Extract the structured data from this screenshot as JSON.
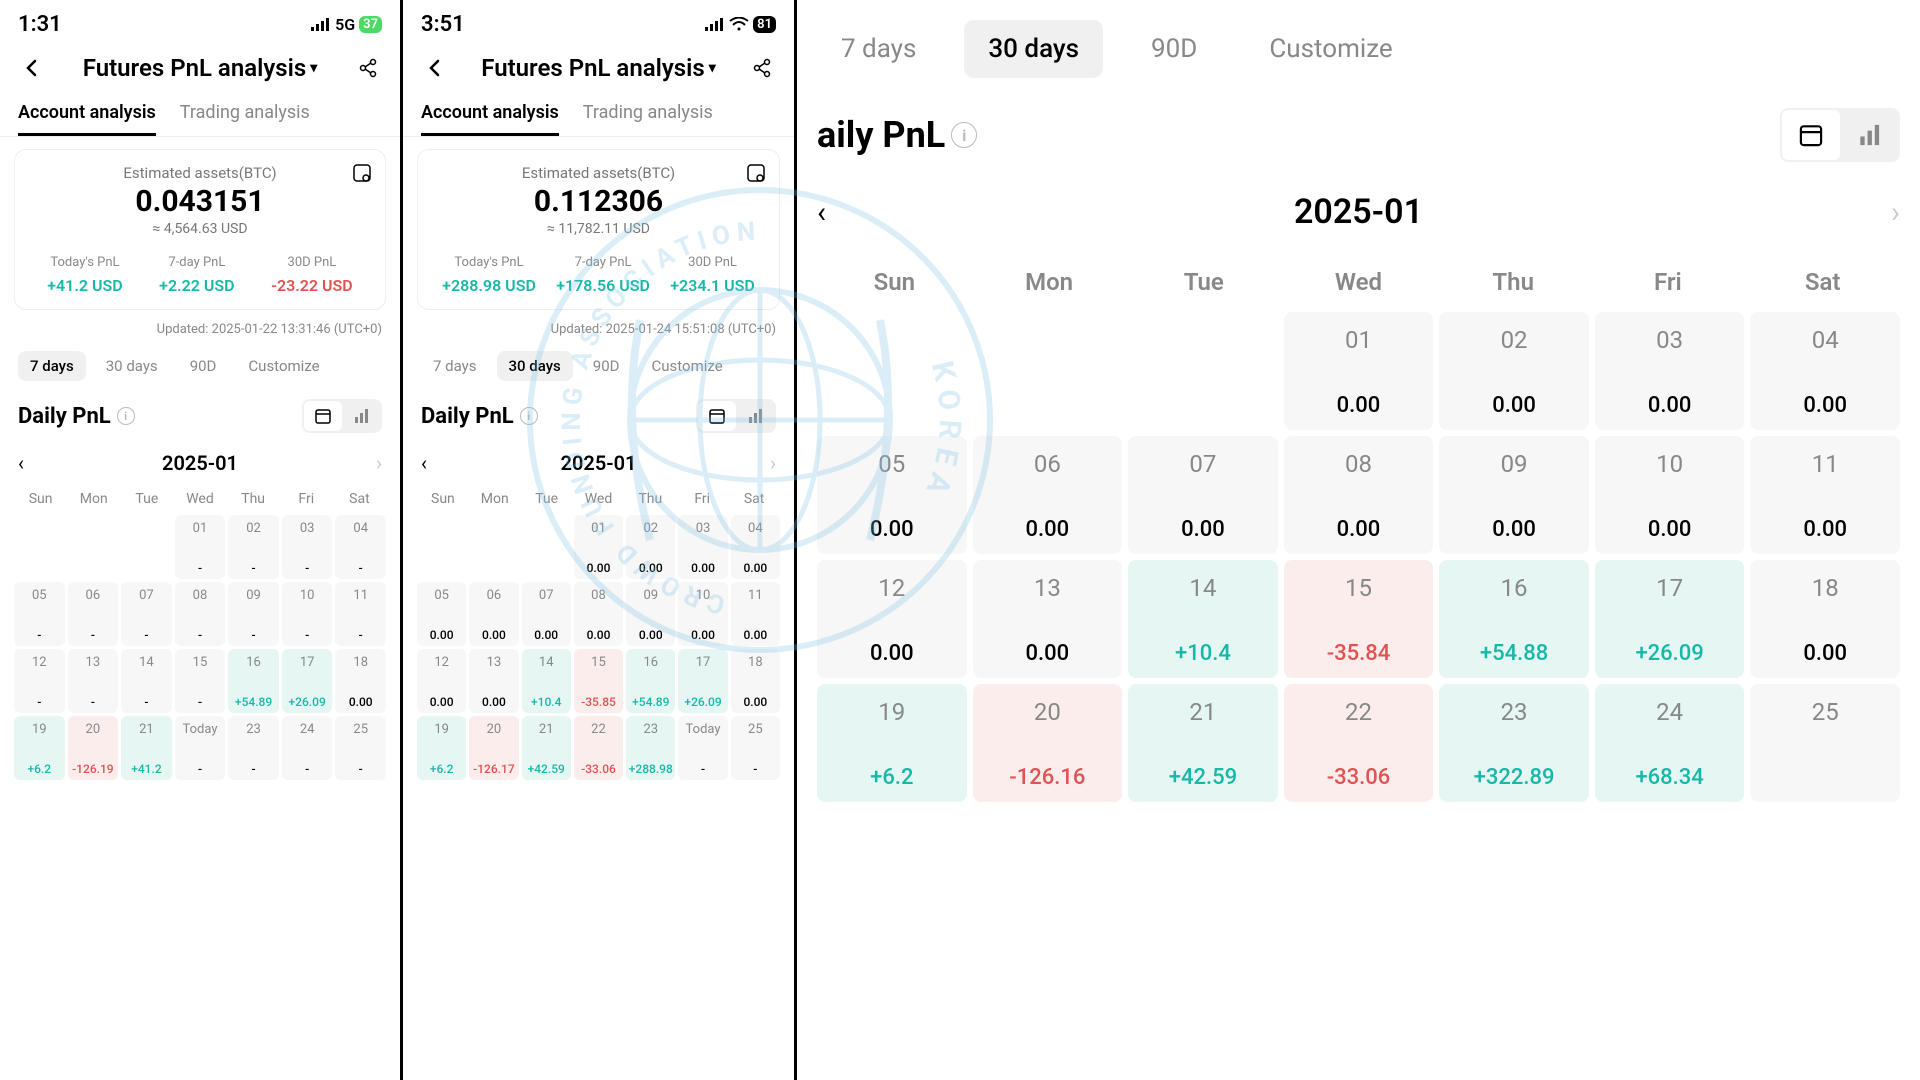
{
  "colors": {
    "pos": "#18b8a8",
    "neg": "#e15252",
    "muted": "#888888",
    "cell_bg": "#f7f7f7",
    "pos_bg": "#e5f6f3",
    "neg_bg": "#fceded",
    "watermark": "#7fc4e8"
  },
  "panel1": {
    "status": {
      "time": "1:31",
      "net": "5G",
      "battery": "37"
    },
    "header": {
      "title": "Futures PnL analysis"
    },
    "tabs": {
      "active": "Account analysis",
      "inactive": "Trading analysis"
    },
    "card": {
      "label": "Estimated assets(BTC)",
      "value": "0.043151",
      "usd": "≈ 4,564.63 USD",
      "pnl": [
        {
          "label": "Today's PnL",
          "value": "+41.2 USD",
          "type": "pos"
        },
        {
          "label": "7-day PnL",
          "value": "+2.22 USD",
          "type": "pos"
        },
        {
          "label": "30D PnL",
          "value": "-23.22 USD",
          "type": "neg"
        }
      ]
    },
    "updated": "Updated: 2025-01-22 13:31:46 (UTC+0)",
    "ranges": [
      "7 days",
      "30 days",
      "90D",
      "Customize"
    ],
    "activeRange": 0,
    "sectionTitle": "Daily PnL",
    "month": "2025-01",
    "dow": [
      "Sun",
      "Mon",
      "Tue",
      "Wed",
      "Thu",
      "Fri",
      "Sat"
    ],
    "cells": [
      null,
      null,
      null,
      {
        "day": "01",
        "val": "-",
        "t": ""
      },
      {
        "day": "02",
        "val": "-",
        "t": ""
      },
      {
        "day": "03",
        "val": "-",
        "t": ""
      },
      {
        "day": "04",
        "val": "-",
        "t": ""
      },
      {
        "day": "05",
        "val": "-",
        "t": ""
      },
      {
        "day": "06",
        "val": "-",
        "t": ""
      },
      {
        "day": "07",
        "val": "-",
        "t": ""
      },
      {
        "day": "08",
        "val": "-",
        "t": ""
      },
      {
        "day": "09",
        "val": "-",
        "t": ""
      },
      {
        "day": "10",
        "val": "-",
        "t": ""
      },
      {
        "day": "11",
        "val": "-",
        "t": ""
      },
      {
        "day": "12",
        "val": "-",
        "t": ""
      },
      {
        "day": "13",
        "val": "-",
        "t": ""
      },
      {
        "day": "14",
        "val": "-",
        "t": ""
      },
      {
        "day": "15",
        "val": "-",
        "t": ""
      },
      {
        "day": "16",
        "val": "+54.89",
        "t": "pos"
      },
      {
        "day": "17",
        "val": "+26.09",
        "t": "pos"
      },
      {
        "day": "18",
        "val": "0.00",
        "t": "zero"
      },
      {
        "day": "19",
        "val": "+6.2",
        "t": "pos"
      },
      {
        "day": "20",
        "val": "-126.19",
        "t": "neg"
      },
      {
        "day": "21",
        "val": "+41.2",
        "t": "pos"
      },
      {
        "day": "Today",
        "val": "-",
        "t": ""
      },
      {
        "day": "23",
        "val": "-",
        "t": ""
      },
      {
        "day": "24",
        "val": "-",
        "t": ""
      },
      {
        "day": "25",
        "val": "-",
        "t": ""
      }
    ]
  },
  "panel2": {
    "status": {
      "time": "3:51",
      "battery": "81"
    },
    "header": {
      "title": "Futures PnL analysis"
    },
    "tabs": {
      "active": "Account analysis",
      "inactive": "Trading analysis"
    },
    "card": {
      "label": "Estimated assets(BTC)",
      "value": "0.112306",
      "usd": "≈ 11,782.11 USD",
      "pnl": [
        {
          "label": "Today's PnL",
          "value": "+288.98 USD",
          "type": "pos"
        },
        {
          "label": "7-day PnL",
          "value": "+178.56 USD",
          "type": "pos"
        },
        {
          "label": "30D PnL",
          "value": "+234.1 USD",
          "type": "pos"
        }
      ]
    },
    "updated": "Updated: 2025-01-24 15:51:08 (UTC+0)",
    "ranges": [
      "7 days",
      "30 days",
      "90D",
      "Customize"
    ],
    "activeRange": 1,
    "sectionTitle": "Daily PnL",
    "month": "2025-01",
    "dow": [
      "Sun",
      "Mon",
      "Tue",
      "Wed",
      "Thu",
      "Fri",
      "Sat"
    ],
    "cells": [
      null,
      null,
      null,
      {
        "day": "01",
        "val": "0.00",
        "t": "zero"
      },
      {
        "day": "02",
        "val": "0.00",
        "t": "zero"
      },
      {
        "day": "03",
        "val": "0.00",
        "t": "zero"
      },
      {
        "day": "04",
        "val": "0.00",
        "t": "zero"
      },
      {
        "day": "05",
        "val": "0.00",
        "t": "zero"
      },
      {
        "day": "06",
        "val": "0.00",
        "t": "zero"
      },
      {
        "day": "07",
        "val": "0.00",
        "t": "zero"
      },
      {
        "day": "08",
        "val": "0.00",
        "t": "zero"
      },
      {
        "day": "09",
        "val": "0.00",
        "t": "zero"
      },
      {
        "day": "10",
        "val": "0.00",
        "t": "zero"
      },
      {
        "day": "11",
        "val": "0.00",
        "t": "zero"
      },
      {
        "day": "12",
        "val": "0.00",
        "t": "zero"
      },
      {
        "day": "13",
        "val": "0.00",
        "t": "zero"
      },
      {
        "day": "14",
        "val": "+10.4",
        "t": "pos"
      },
      {
        "day": "15",
        "val": "-35.85",
        "t": "neg"
      },
      {
        "day": "16",
        "val": "+54.89",
        "t": "pos"
      },
      {
        "day": "17",
        "val": "+26.09",
        "t": "pos"
      },
      {
        "day": "18",
        "val": "0.00",
        "t": "zero"
      },
      {
        "day": "19",
        "val": "+6.2",
        "t": "pos"
      },
      {
        "day": "20",
        "val": "-126.17",
        "t": "neg"
      },
      {
        "day": "21",
        "val": "+42.59",
        "t": "pos"
      },
      {
        "day": "22",
        "val": "-33.06",
        "t": "neg"
      },
      {
        "day": "23",
        "val": "+288.98",
        "t": "pos"
      },
      {
        "day": "Today",
        "val": "-",
        "t": ""
      },
      {
        "day": "25",
        "val": "-",
        "t": ""
      }
    ]
  },
  "panel3": {
    "ranges": [
      "7 days",
      "30 days",
      "90D",
      "Customize"
    ],
    "activeRange": 1,
    "sectionTitle": "aily PnL",
    "month": "2025-01",
    "dow": [
      "Sun",
      "Mon",
      "Tue",
      "Wed",
      "Thu",
      "Fri",
      "Sat"
    ],
    "cells": [
      null,
      null,
      null,
      {
        "day": "01",
        "val": "0.00",
        "t": "zero"
      },
      {
        "day": "02",
        "val": "0.00",
        "t": "zero"
      },
      {
        "day": "03",
        "val": "0.00",
        "t": "zero"
      },
      {
        "day": "04",
        "val": "0.00",
        "t": "zero"
      },
      {
        "day": "05",
        "val": "0.00",
        "t": "zero"
      },
      {
        "day": "06",
        "val": "0.00",
        "t": "zero"
      },
      {
        "day": "07",
        "val": "0.00",
        "t": "zero"
      },
      {
        "day": "08",
        "val": "0.00",
        "t": "zero"
      },
      {
        "day": "09",
        "val": "0.00",
        "t": "zero"
      },
      {
        "day": "10",
        "val": "0.00",
        "t": "zero"
      },
      {
        "day": "11",
        "val": "0.00",
        "t": "zero"
      },
      {
        "day": "12",
        "val": "0.00",
        "t": "zero"
      },
      {
        "day": "13",
        "val": "0.00",
        "t": "zero"
      },
      {
        "day": "14",
        "val": "+10.4",
        "t": "pos"
      },
      {
        "day": "15",
        "val": "-35.84",
        "t": "neg"
      },
      {
        "day": "16",
        "val": "+54.88",
        "t": "pos"
      },
      {
        "day": "17",
        "val": "+26.09",
        "t": "pos"
      },
      {
        "day": "18",
        "val": "0.00",
        "t": "zero"
      },
      {
        "day": "19",
        "val": "+6.2",
        "t": "pos"
      },
      {
        "day": "20",
        "val": "-126.16",
        "t": "neg"
      },
      {
        "day": "21",
        "val": "+42.59",
        "t": "pos"
      },
      {
        "day": "22",
        "val": "-33.06",
        "t": "neg"
      },
      {
        "day": "23",
        "val": "+322.89",
        "t": "pos"
      },
      {
        "day": "24",
        "val": "+68.34",
        "t": "pos"
      },
      {
        "day": "25",
        "val": "",
        "t": ""
      }
    ]
  },
  "watermark": {
    "top": "KOREA",
    "bottom": "FUNDING",
    "left": "CROWD",
    "right": "ASSOCIATION"
  }
}
